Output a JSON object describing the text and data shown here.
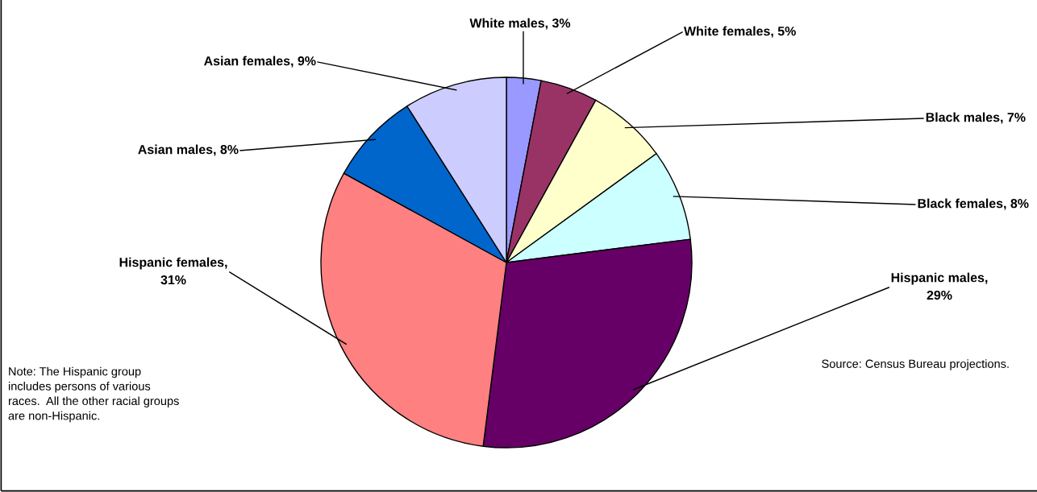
{
  "chart_data": {
    "type": "pie",
    "categories": [
      "White males, 3%",
      "White females, 5%",
      "Black males, 7%",
      "Black females, 8%",
      "Hispanic males, 29%",
      "Hispanic females, 31%",
      "Asian males, 8%",
      "Asian females, 9%"
    ],
    "values": [
      3,
      5,
      7,
      8,
      29,
      31,
      8,
      9
    ],
    "colors": [
      "#9999ff",
      "#993366",
      "#ffffcc",
      "#ccffff",
      "#660066",
      "#ff8080",
      "#0066cc",
      "#ccccff"
    ],
    "annotations": [
      "Note: The Hispanic group\nincludes persons of various\nraces.  All the other racial groups\nare non-Hispanic.",
      "Source: Census Bureau projections."
    ]
  }
}
